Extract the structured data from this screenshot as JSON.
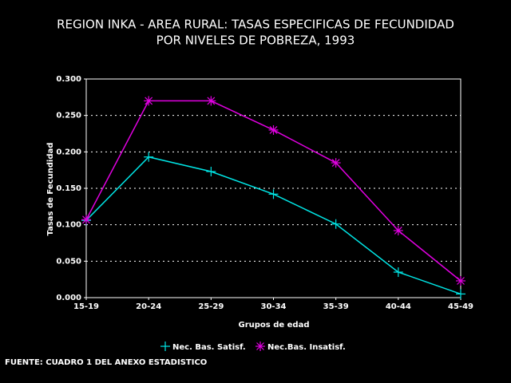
{
  "chart_data": {
    "type": "line",
    "title": [
      "REGION INKA - AREA RURAL: TASAS ESPECIFICAS DE FECUNDIDAD",
      "POR NIVELES DE POBREZA, 1993"
    ],
    "x_label": "Grupos de edad",
    "y_label": "Tasas de Fecundidad",
    "source": "FUENTE: CUADRO 1 DEL ANEXO  ESTADISTICO",
    "categories": [
      "15-19",
      "20-24",
      "25-29",
      "30-34",
      "35-39",
      "40-44",
      "45-49"
    ],
    "series": [
      {
        "name": "Nec. Bas. Satisf.",
        "color": "#00e5e5",
        "marker": "plus",
        "values": [
          0.106,
          0.193,
          0.173,
          0.142,
          0.101,
          0.035,
          0.005
        ]
      },
      {
        "name": "Nec.Bas. Insatisf.",
        "color": "#e000e0",
        "marker": "asterisk",
        "values": [
          0.107,
          0.27,
          0.27,
          0.23,
          0.185,
          0.092,
          0.023
        ]
      }
    ],
    "ylim": [
      0,
      0.3
    ],
    "yticks": [
      {
        "value": 0,
        "label": "0.000"
      },
      {
        "value": 0.05,
        "label": "0.050"
      },
      {
        "value": 0.1,
        "label": "0.100"
      },
      {
        "value": 0.15,
        "label": "0.150"
      },
      {
        "value": 0.2,
        "label": "0.200"
      },
      {
        "value": 0.25,
        "label": "0.250"
      },
      {
        "value": 0.3,
        "label": "0.300"
      }
    ],
    "grid": true
  }
}
